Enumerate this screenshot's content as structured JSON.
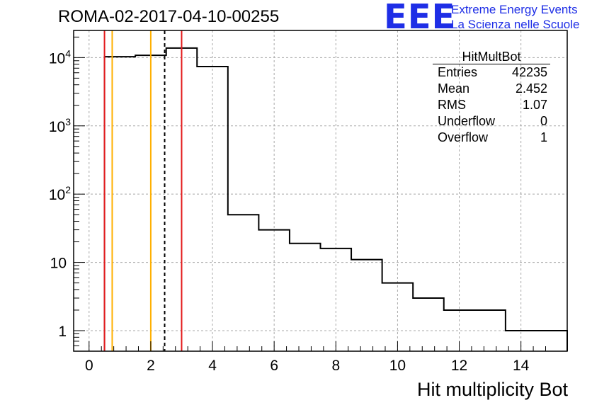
{
  "header": {
    "run_title": "ROMA-02-2017-04-10-00255",
    "logo": "EEE",
    "logo_line1": "Extreme Energy Events",
    "logo_line2": "La Scienza nelle Scuole"
  },
  "stats": {
    "title": "HitMultBot",
    "rows": [
      {
        "label": "Entries",
        "value": "42235"
      },
      {
        "label": "Mean",
        "value": "2.452"
      },
      {
        "label": "RMS",
        "value": "1.07"
      },
      {
        "label": "Underflow",
        "value": "0"
      },
      {
        "label": "Overflow",
        "value": "1"
      }
    ]
  },
  "chart_data": {
    "type": "histogram",
    "title": "ROMA-02-2017-04-10-00255",
    "xlabel": "Hit multiplicity Bot",
    "ylabel": "",
    "yscale": "log",
    "xlim": [
      -0.5,
      15.5
    ],
    "ylim": [
      0.5,
      25000
    ],
    "grid": true,
    "x_ticks": [
      "0",
      "2",
      "4",
      "6",
      "8",
      "10",
      "12",
      "14"
    ],
    "y_ticks": [
      {
        "base": "1",
        "exp": ""
      },
      {
        "base": "10",
        "exp": ""
      },
      {
        "base": "10",
        "exp": "2"
      },
      {
        "base": "10",
        "exp": "3"
      },
      {
        "base": "10",
        "exp": "4"
      }
    ],
    "bins": [
      {
        "x_low": 0.5,
        "x_high": 1.5,
        "count": 10300
      },
      {
        "x_low": 1.5,
        "x_high": 2.5,
        "count": 10800
      },
      {
        "x_low": 2.5,
        "x_high": 3.5,
        "count": 13800
      },
      {
        "x_low": 3.5,
        "x_high": 4.5,
        "count": 7400
      },
      {
        "x_low": 4.5,
        "x_high": 5.5,
        "count": 50
      },
      {
        "x_low": 5.5,
        "x_high": 6.5,
        "count": 30
      },
      {
        "x_low": 6.5,
        "x_high": 7.5,
        "count": 19
      },
      {
        "x_low": 7.5,
        "x_high": 8.5,
        "count": 16
      },
      {
        "x_low": 8.5,
        "x_high": 9.5,
        "count": 11
      },
      {
        "x_low": 9.5,
        "x_high": 10.5,
        "count": 5
      },
      {
        "x_low": 10.5,
        "x_high": 11.5,
        "count": 3
      },
      {
        "x_low": 11.5,
        "x_high": 13.5,
        "count": 2
      },
      {
        "x_low": 13.5,
        "x_high": 15.5,
        "count": 1
      }
    ],
    "markers": [
      {
        "x": 0.5,
        "color": "#e31a1c",
        "style": "solid"
      },
      {
        "x": 3.0,
        "color": "#e31a1c",
        "style": "solid"
      },
      {
        "x": 0.75,
        "color": "#ffb000",
        "style": "solid"
      },
      {
        "x": 2.0,
        "color": "#ffb000",
        "style": "solid"
      },
      {
        "x": 2.45,
        "color": "#000000",
        "style": "dashed"
      }
    ]
  }
}
